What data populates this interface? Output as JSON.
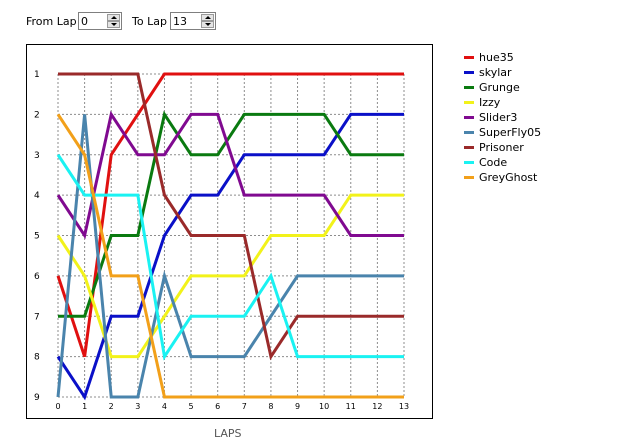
{
  "controls": {
    "from_label": "From Lap",
    "from_value": "0",
    "to_label": "To Lap",
    "to_value": "13"
  },
  "chart_data": {
    "type": "line",
    "xlabel": "LAPS",
    "ylabel": "",
    "x": [
      0,
      1,
      2,
      3,
      4,
      5,
      6,
      7,
      8,
      9,
      10,
      11,
      12,
      13
    ],
    "xlim": [
      0,
      13
    ],
    "ylim": [
      1,
      9
    ],
    "y_inverted": true,
    "yticks": [
      1,
      2,
      3,
      4,
      5,
      6,
      7,
      8,
      9
    ],
    "grid": true,
    "legend": "right",
    "series": [
      {
        "name": "hue35",
        "color": "#e01010",
        "values": [
          6,
          8,
          3,
          2,
          1,
          1,
          1,
          1,
          1,
          1,
          1,
          1,
          1,
          1
        ]
      },
      {
        "name": "skylar",
        "color": "#0a10c8",
        "values": [
          8,
          9,
          7,
          7,
          5,
          4,
          4,
          3,
          3,
          3,
          3,
          2,
          2,
          2
        ]
      },
      {
        "name": "Grunge",
        "color": "#0a7a10",
        "values": [
          7,
          7,
          5,
          5,
          2,
          3,
          3,
          2,
          2,
          2,
          2,
          3,
          3,
          3
        ]
      },
      {
        "name": "Izzy",
        "color": "#f2f21a",
        "values": [
          5,
          6,
          8,
          8,
          7,
          6,
          6,
          6,
          5,
          5,
          5,
          4,
          4,
          4
        ]
      },
      {
        "name": "Slider3",
        "color": "#800a90",
        "values": [
          4,
          5,
          2,
          3,
          3,
          2,
          2,
          4,
          4,
          4,
          4,
          5,
          5,
          5
        ]
      },
      {
        "name": "SuperFly05",
        "color": "#4a84ac",
        "values": [
          9,
          2,
          9,
          9,
          6,
          8,
          8,
          8,
          7,
          6,
          6,
          6,
          6,
          6
        ]
      },
      {
        "name": "Prisoner",
        "color": "#9a2a2a",
        "values": [
          1,
          1,
          1,
          1,
          4,
          5,
          5,
          5,
          8,
          7,
          7,
          7,
          7,
          7
        ]
      },
      {
        "name": "Code",
        "color": "#1af2f2",
        "values": [
          3,
          4,
          4,
          4,
          8,
          7,
          7,
          7,
          6,
          8,
          8,
          8,
          8,
          8
        ]
      },
      {
        "name": "GreyGhost",
        "color": "#f2a01a",
        "values": [
          2,
          3,
          6,
          6,
          9,
          9,
          9,
          9,
          9,
          9,
          9,
          9,
          9,
          9
        ]
      }
    ]
  }
}
